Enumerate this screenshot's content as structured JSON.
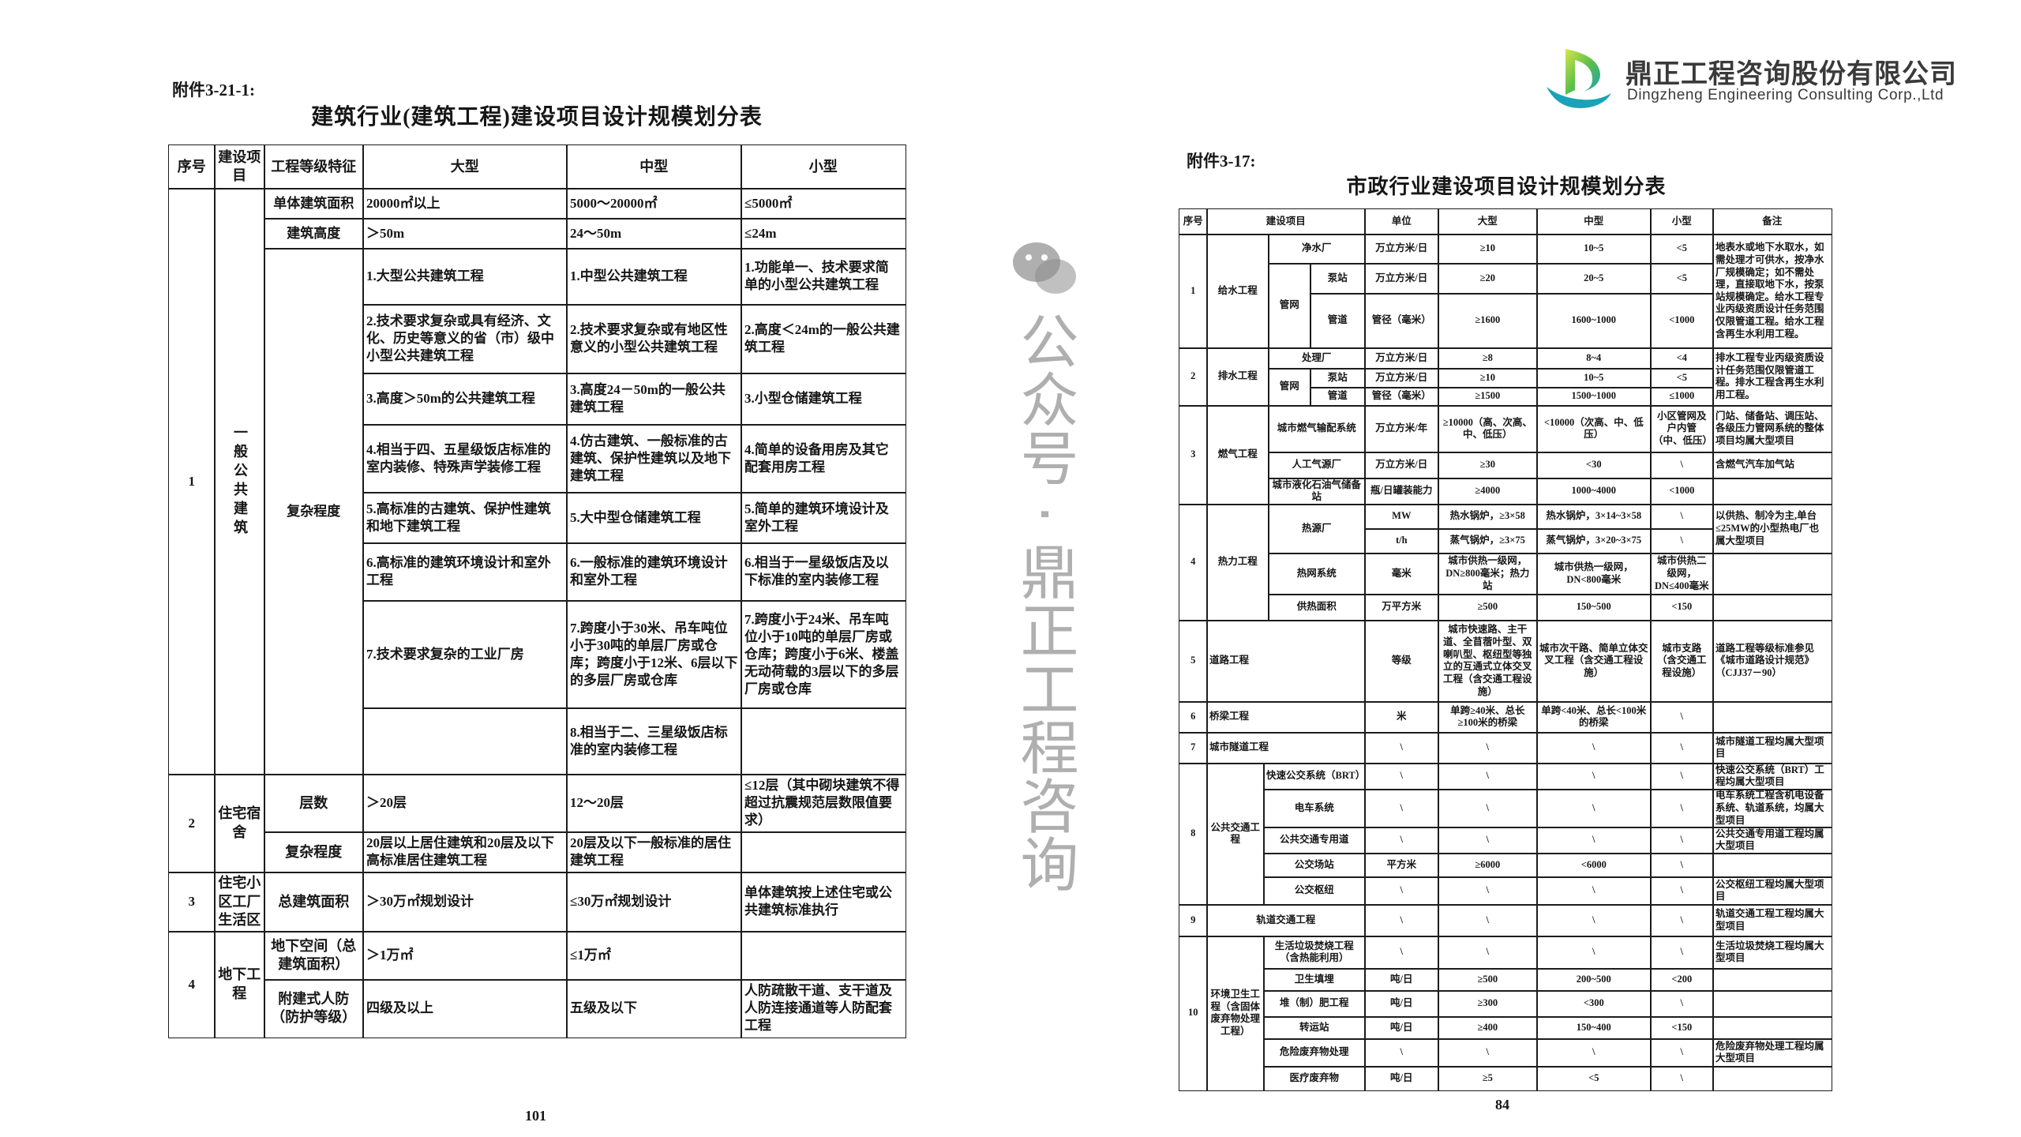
{
  "logo": {
    "name_cn": "鼎正工程咨询股份有限公司",
    "name_en": "Dingzheng Engineering Consulting Corp.,Ltd",
    "colors": {
      "green": "#8cc63f",
      "teal": "#1aa3b8"
    }
  },
  "watermark": {
    "text": "公众号 · 鼎正工程咨询",
    "icon": "wechat-icon"
  },
  "left": {
    "label": "附件3-21-1:",
    "title": "建筑行业(建筑工程)建设项目设计规模划分表",
    "header": [
      "序号",
      "建设项目",
      "工程等级特征",
      "大型",
      "中型",
      "小型"
    ],
    "sections": [
      {
        "no": "1",
        "name": "一般公共建筑",
        "rows": [
          {
            "feature": "单体建筑面积",
            "large": "20000㎡以上",
            "medium": "5000～20000㎡",
            "small": "≤5000㎡"
          },
          {
            "feature": "建筑高度",
            "large": "＞50m",
            "medium": "24～50m",
            "small": "≤24m"
          }
        ],
        "complexity": {
          "feature": "复杂程度",
          "items": [
            {
              "large": "1.大型公共建筑工程",
              "medium": "1.中型公共建筑工程",
              "small": "1.功能单一、技术要求简单的小型公共建筑工程"
            },
            {
              "large": "2.技术要求复杂或具有经济、文化、历史等意义的省（市）级中小型公共建筑工程",
              "medium": "2.技术要求复杂或有地区性意义的小型公共建筑工程",
              "small": "2.高度＜24m的一般公共建筑工程"
            },
            {
              "large": "3.高度＞50m的公共建筑工程",
              "medium": "3.高度24－50m的一般公共建筑工程",
              "small": "3.小型仓储建筑工程"
            },
            {
              "large": "4.相当于四、五星级饭店标准的室内装修、特殊声学装修工程",
              "medium": "4.仿古建筑、一般标准的古建筑、保护性建筑以及地下建筑工程",
              "small": "4.简单的设备用房及其它配套用房工程"
            },
            {
              "large": "5.高标准的古建筑、保护性建筑和地下建筑工程",
              "medium": "5.大中型仓储建筑工程",
              "small": "5.简单的建筑环境设计及室外工程"
            },
            {
              "large": "6.高标准的建筑环境设计和室外工程",
              "medium": "6.一般标准的建筑环境设计和室外工程",
              "small": "6.相当于一星级饭店及以下标准的室内装修工程"
            },
            {
              "large": "7.技术要求复杂的工业厂房",
              "medium": "7.跨度小于30米、吊车吨位小于30吨的单层厂房或仓库；跨度小于12米、6层以下的多层厂房或仓库",
              "small": "7.跨度小于24米、吊车吨位小于10吨的单层厂房或仓库；跨度小于6米、楼盖无动荷载的3层以下的多层厂房或仓库"
            },
            {
              "large": "",
              "medium": "8.相当于二、三星级饭店标准的室内装修工程",
              "small": ""
            }
          ]
        }
      },
      {
        "no": "2",
        "name": "住宅宿舍",
        "rows": [
          {
            "feature": "层数",
            "large": "＞20层",
            "medium": "12～20层",
            "small": "≤12层（其中砌块建筑不得超过抗震规范层数限值要求）"
          },
          {
            "feature": "复杂程度",
            "large": "20层以上居住建筑和20层及以下高标准居住建筑工程",
            "medium": "20层及以下一般标准的居住建筑工程",
            "small": ""
          }
        ]
      },
      {
        "no": "3",
        "name": "住宅小区工厂生活区",
        "rows": [
          {
            "feature": "总建筑面积",
            "large": "＞30万㎡规划设计",
            "medium": "≤30万㎡规划设计",
            "small": "单体建筑按上述住宅或公共建筑标准执行"
          }
        ]
      },
      {
        "no": "4",
        "name": "地下工程",
        "rows": [
          {
            "feature": "地下空间（总建筑面积）",
            "large": "＞1万㎡",
            "medium": "≤1万㎡",
            "small": ""
          },
          {
            "feature": "附建式人防（防护等级）",
            "large": "四级及以上",
            "medium": "五级及以下",
            "small": "人防疏散干道、支干道及人防连接通道等人防配套工程"
          }
        ]
      }
    ],
    "page": "101"
  },
  "right": {
    "label": "附件3-17:",
    "title": "市政行业建设项目设计规模划分表",
    "header": [
      "序号",
      "建设项目",
      "单位",
      "大型",
      "中型",
      "小型",
      "备注"
    ],
    "s1": {
      "no": "1",
      "name": "给水工程",
      "sub": "管网",
      "items": [
        {
          "name": "净水厂",
          "unit": "万立方米/日",
          "large": "≥10",
          "medium": "10~5",
          "small": "<5"
        },
        {
          "name": "泵站",
          "unit": "万立方米/日",
          "large": "≥20",
          "medium": "20~5",
          "small": "<5"
        },
        {
          "name": "管道",
          "unit": "管径（毫米）",
          "large": "≥1600",
          "medium": "1600~1000",
          "small": "<1000"
        }
      ],
      "note": "地表水或地下水取水，如需处理才可供水，按净水厂规模确定；如不需处理，直接取地下水，按泵站规模确定。给水工程专业丙级资质设计任务范围仅限管道工程。给水工程含再生水利用工程。"
    },
    "s2": {
      "no": "2",
      "name": "排水工程",
      "sub": "管网",
      "items": [
        {
          "name": "处理厂",
          "unit": "万立方米/日",
          "large": "≥8",
          "medium": "8~4",
          "small": "<4"
        },
        {
          "name": "泵站",
          "unit": "万立方米/日",
          "large": "≥10",
          "medium": "10~5",
          "small": "<5"
        },
        {
          "name": "管道",
          "unit": "管径（毫米）",
          "large": "≥1500",
          "medium": "1500~1000",
          "small": "≤1000"
        }
      ],
      "note": "排水工程专业丙级资质设计任务范围仅限管道工程。排水工程含再生水利用工程。"
    },
    "s3": {
      "no": "3",
      "name": "燃气工程",
      "items": [
        {
          "name": "城市燃气输配系统",
          "unit": "万立方米/年",
          "large": "≥10000（高、次高、中、低压）",
          "medium": "<10000（次高、中、低压）",
          "small": "小区管网及户内管（中、低压）",
          "note": "门站、储备站、调压站、各级压力管网系统的整体项目均属大型项目"
        },
        {
          "name": "人工气源厂",
          "unit": "万立方米/日",
          "large": "≥30",
          "medium": "<30",
          "small": "\\",
          "note": "含燃气汽车加气站"
        },
        {
          "name": "城市液化石油气储备站",
          "unit": "瓶/日罐装能力",
          "large": "≥4000",
          "medium": "1000~4000",
          "small": "<1000",
          "note": ""
        }
      ]
    },
    "s4": {
      "no": "4",
      "name": "热力工程",
      "heat_source": {
        "name": "热源厂",
        "rows": [
          {
            "unit": "MW",
            "large": "热水锅炉，≥3×58",
            "medium": "热水锅炉，3×14~3×58",
            "small": "\\"
          },
          {
            "unit": "t/h",
            "large": "蒸气锅炉，≥3×75",
            "medium": "蒸气锅炉，3×20~3×75",
            "small": "\\"
          }
        ],
        "note": "以供热、制冷为主,单台≤25MW的小型热电厂也属大型项目"
      },
      "items": [
        {
          "name": "热网系统",
          "unit": "毫米",
          "large": "城市供热一级网，DN≥800毫米；热力站",
          "medium": "城市供热一级网，DN<800毫米",
          "small": "城市供热二级网，DN≤400毫米",
          "note": ""
        },
        {
          "name": "供热面积",
          "unit": "万平方米",
          "large": "≥500",
          "medium": "150~500",
          "small": "<150",
          "note": ""
        }
      ]
    },
    "singles": [
      {
        "no": "5",
        "name": "道路工程",
        "unit": "等级",
        "large": "城市快速路、主干道、全苜蓿叶型、双喇叭型、枢纽型等独立的互通式立体交叉工程（含交通工程设施）",
        "medium": "城市次干路、简单立体交叉工程（含交通工程设施）",
        "small": "城市支路（含交通工程设施）",
        "note": "道路工程等级标准参见《城市道路设计规范》（CJJ37－90）"
      },
      {
        "no": "6",
        "name": "桥梁工程",
        "unit": "米",
        "large": "单跨≥40米、总长≥100米的桥梁",
        "medium": "单跨<40米、总长<100米的桥梁",
        "small": "\\",
        "note": ""
      },
      {
        "no": "7",
        "name": "城市隧道工程",
        "unit": "\\",
        "large": "\\",
        "medium": "\\",
        "small": "\\",
        "note": "城市隧道工程均属大型项目"
      }
    ],
    "s8": {
      "no": "8",
      "name": "公共交通工程",
      "items": [
        {
          "name": "快速公交系统（BRT）",
          "unit": "\\",
          "large": "\\",
          "medium": "\\",
          "small": "\\",
          "note": "快速公交系统（BRT）工程均属大型项目"
        },
        {
          "name": "电车系统",
          "unit": "\\",
          "large": "\\",
          "medium": "\\",
          "small": "\\",
          "note": "电车系统工程含机电设备系统、轨道系统，均属大型项目"
        },
        {
          "name": "公共交通专用道",
          "unit": "\\",
          "large": "\\",
          "medium": "\\",
          "small": "\\",
          "note": "公共交通专用道工程均属大型项目"
        },
        {
          "name": "公交场站",
          "unit": "平方米",
          "large": "≥6000",
          "medium": "<6000",
          "small": "\\",
          "note": ""
        },
        {
          "name": "公交枢纽",
          "unit": "\\",
          "large": "\\",
          "medium": "\\",
          "small": "\\",
          "note": "公交枢纽工程均属大型项目"
        }
      ]
    },
    "s9": {
      "no": "9",
      "name": "轨道交通工程",
      "unit": "\\",
      "large": "\\",
      "medium": "\\",
      "small": "\\",
      "note": "轨道交通工程工程均属大型项目"
    },
    "s10": {
      "no": "10",
      "name": "环境卫生工程（含固体废弃物处理工程）",
      "items": [
        {
          "name": "生活垃圾焚烧工程（含热能利用）",
          "unit": "\\",
          "large": "\\",
          "medium": "\\",
          "small": "\\",
          "note": "生活垃圾焚烧工程均属大型项目"
        },
        {
          "name": "卫生填埋",
          "unit": "吨/日",
          "large": "≥500",
          "medium": "200~500",
          "small": "<200",
          "note": ""
        },
        {
          "name": "堆（制）肥工程",
          "unit": "吨/日",
          "large": "≥300",
          "medium": "<300",
          "small": "\\",
          "note": ""
        },
        {
          "name": "转运站",
          "unit": "吨/日",
          "large": "≥400",
          "medium": "150~400",
          "small": "<150",
          "note": ""
        },
        {
          "name": "危险废弃物处理",
          "unit": "\\",
          "large": "\\",
          "medium": "\\",
          "small": "\\",
          "note": "危险废弃物处理工程均属大型项目"
        },
        {
          "name": "医疗废弃物",
          "unit": "吨/日",
          "large": "≥5",
          "medium": "<5",
          "small": "\\",
          "note": ""
        }
      ]
    },
    "page": "84"
  }
}
